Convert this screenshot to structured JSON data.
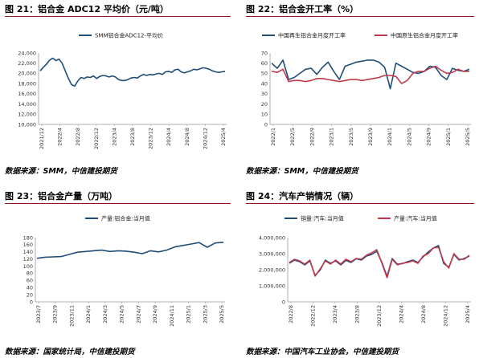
{
  "colors": {
    "blue": "#1f4e79",
    "red": "#c0394b",
    "rule": "#8a1a1a"
  },
  "charts": [
    {
      "title": "图 21：铝合金 ADC12 平均价（元/吨）",
      "source": "数据来源：SMM，中信建投期货",
      "chart_data": {
        "type": "line",
        "x_ticks": [
          "2021/12",
          "2022/4",
          "2022/8",
          "2022/12",
          "2023/4",
          "2023/8",
          "2023/12",
          "2024/4",
          "2024/8",
          "2024/12",
          "2025/4"
        ],
        "y_ticks": [
          "24,000",
          "22,000",
          "20,000",
          "18,000",
          "16,000",
          "14,000",
          "12,000",
          "10,000"
        ],
        "ylim": [
          10000,
          24000
        ],
        "series": [
          {
            "name": "SMM铝合金ADC12-平均价",
            "color": "#1f4e79",
            "values": [
              20500,
              21200,
              21800,
              22600,
              23000,
              22500,
              22800,
              22000,
              20500,
              19000,
              17800,
              17500,
              18500,
              19200,
              19000,
              19300,
              19200,
              19500,
              19000,
              19400,
              19600,
              19500,
              19300,
              19500,
              19300,
              18800,
              18600,
              18600,
              18800,
              19100,
              19200,
              19100,
              19500,
              19800,
              19600,
              19800,
              19700,
              19900,
              20000,
              19800,
              20300,
              20400,
              20200,
              20700,
              20800,
              20300,
              20100,
              20300,
              20500,
              20800,
              20700,
              20900,
              21100,
              21000,
              20800,
              20500,
              20300,
              20200,
              20300,
              20400
            ]
          }
        ]
      }
    },
    {
      "title": "图 22：铝合金开工率（%）",
      "source": "数据来源：SMM，中信建投期货",
      "chart_data": {
        "type": "line",
        "x_ticks": [
          "2022/1",
          "2022/5",
          "2022/9",
          "2023/1",
          "2023/5",
          "2023/9",
          "2024/1",
          "2024/5",
          "2024/9",
          "2025/1",
          "2025/5"
        ],
        "y_ticks": [
          "70",
          "60",
          "50",
          "40",
          "30",
          "20",
          "10",
          "0"
        ],
        "ylim": [
          0,
          70
        ],
        "series": [
          {
            "name": "中国再生铝合金月度开工率",
            "color": "#1f4e79",
            "values": [
              60,
              55,
              63,
              44,
              46,
              50,
              54,
              55,
              49,
              56,
              61,
              52,
              44,
              57,
              59,
              61,
              62,
              63,
              63,
              61,
              56,
              35,
              60,
              57,
              54,
              51,
              50,
              52,
              57,
              56,
              48,
              44,
              55,
              53,
              52,
              54
            ]
          },
          {
            "name": "中国原生铝合金月度开工率",
            "color": "#c0394b",
            "values": [
              52,
              51,
              54,
              42,
              43,
              43,
              42,
              43,
              45,
              45,
              44,
              43,
              42,
              43,
              44,
              44,
              43,
              44,
              45,
              46,
              48,
              48,
              47,
              40,
              43,
              50,
              52,
              52,
              55,
              57,
              53,
              50,
              51,
              54,
              52,
              52
            ]
          }
        ]
      }
    },
    {
      "title": "图 23：铝合金产量（万吨）",
      "source": "数据来源：国家统计局，中信建投期货",
      "chart_data": {
        "type": "line",
        "x_ticks": [
          "2023/7",
          "2023/9",
          "2023/11",
          "2024/1",
          "2024/3",
          "2024/5",
          "2024/7",
          "2024/9",
          "2024/11",
          "2025/1",
          "2025/3",
          "2025/5"
        ],
        "y_ticks": [
          "180",
          "160",
          "140",
          "120",
          "100",
          "80",
          "60",
          "40",
          "20",
          "0"
        ],
        "ylim": [
          0,
          180
        ],
        "series": [
          {
            "name": "产量:铝合金:当月值",
            "color": "#1f4e79",
            "values": [
              122,
              125,
              126,
              127,
              133,
              139,
              141,
              143,
              145,
              141,
              143,
              142,
              139,
              135,
              143,
              140,
              145,
              154,
              158,
              162,
              166,
              153,
              165,
              167
            ]
          }
        ]
      }
    },
    {
      "title": "图 24：汽车产销情况（辆）",
      "source": "数据来源：中国汽车工业协会，中信建投期货",
      "chart_data": {
        "type": "line",
        "x_ticks": [
          "2022/8",
          "2022/12",
          "2023/4",
          "2023/8",
          "2023/12",
          "2024/4",
          "2024/8",
          "2024/12",
          "2025/4"
        ],
        "y_ticks": [
          "4,000,000",
          "3,000,000",
          "2,000,000",
          "1,000,000",
          "0"
        ],
        "ylim": [
          0,
          4000000
        ],
        "series": [
          {
            "name": "销量:汽车:当月值",
            "color": "#1f4e79",
            "values": [
              2400000,
              2600000,
              2500000,
              2300000,
              2550000,
              1650000,
              1980000,
              2600000,
              2400000,
              2550000,
              2300000,
              2580000,
              2450000,
              2680000,
              2600000,
              2850000,
              2950000,
              3150000,
              2450000,
              1580000,
              2700000,
              2350000,
              2380000,
              2500000,
              2600000,
              2450000,
              2800000,
              3100000,
              3350000,
              3500000,
              2400000,
              2150000,
              2950000,
              2600000,
              2700000,
              2850000
            ]
          },
          {
            "name": "产量:汽车:当月值",
            "color": "#c0394b",
            "values": [
              2450000,
              2650000,
              2550000,
              2350000,
              2600000,
              1600000,
              2050000,
              2550000,
              2350000,
              2600000,
              2350000,
              2650000,
              2500000,
              2700000,
              2650000,
              2900000,
              3050000,
              3250000,
              2400000,
              1500000,
              2650000,
              2300000,
              2400000,
              2450000,
              2550000,
              2400000,
              2850000,
              3000000,
              3350000,
              3400000,
              2500000,
              2100000,
              3000000,
              2650000,
              2650000,
              2900000
            ]
          }
        ]
      }
    }
  ]
}
